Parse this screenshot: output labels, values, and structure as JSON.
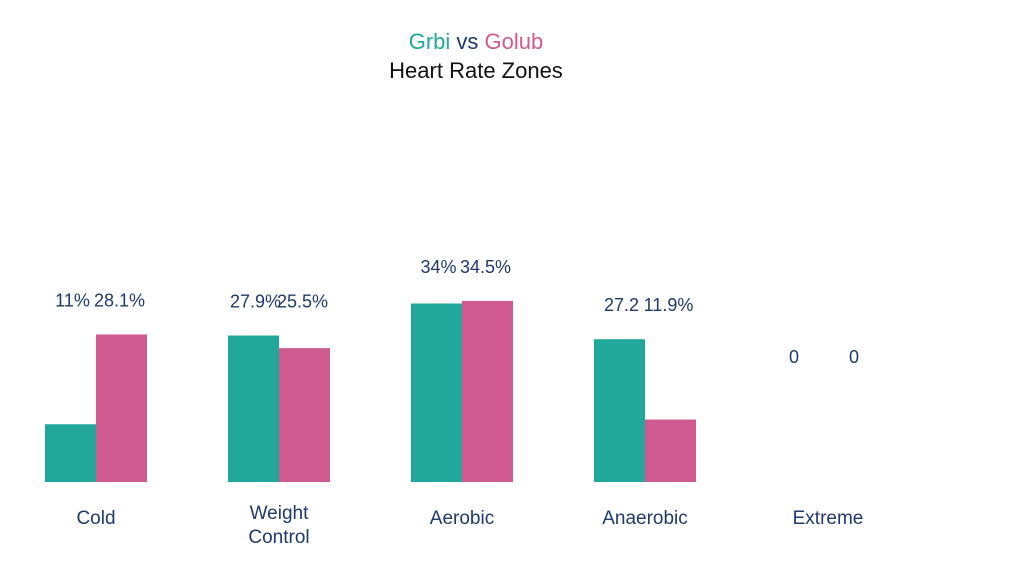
{
  "chart_data": {
    "type": "bar",
    "title_parts": [
      {
        "text": "Grbi",
        "color": "#22a79b"
      },
      {
        "text": " vs ",
        "color": "#1f3a6b"
      },
      {
        "text": "Golub",
        "color": "#cf5a90"
      }
    ],
    "subtitle": "Heart Rate Zones",
    "categories": [
      [
        "Cold"
      ],
      [
        "Weight",
        "Control"
      ],
      [
        "Aerobic"
      ],
      [
        "Anaerobic"
      ],
      [
        "Extreme"
      ]
    ],
    "series": [
      {
        "name": "Grbi",
        "color": "#22a79b",
        "values": [
          11,
          27.9,
          34,
          27.2,
          0
        ],
        "labels": [
          "11%",
          "27.9%",
          "34%",
          "27.2",
          "0"
        ]
      },
      {
        "name": "Golub",
        "color": "#cf5a90",
        "values": [
          28.1,
          25.5,
          34.5,
          11.9,
          0
        ],
        "labels": [
          "28.1%",
          "25.5%",
          "34.5%",
          "11.9%",
          "0"
        ]
      }
    ],
    "ylim": [
      0,
      35
    ],
    "grid": false,
    "legend": "none",
    "label_color": "#1f3a6b"
  }
}
